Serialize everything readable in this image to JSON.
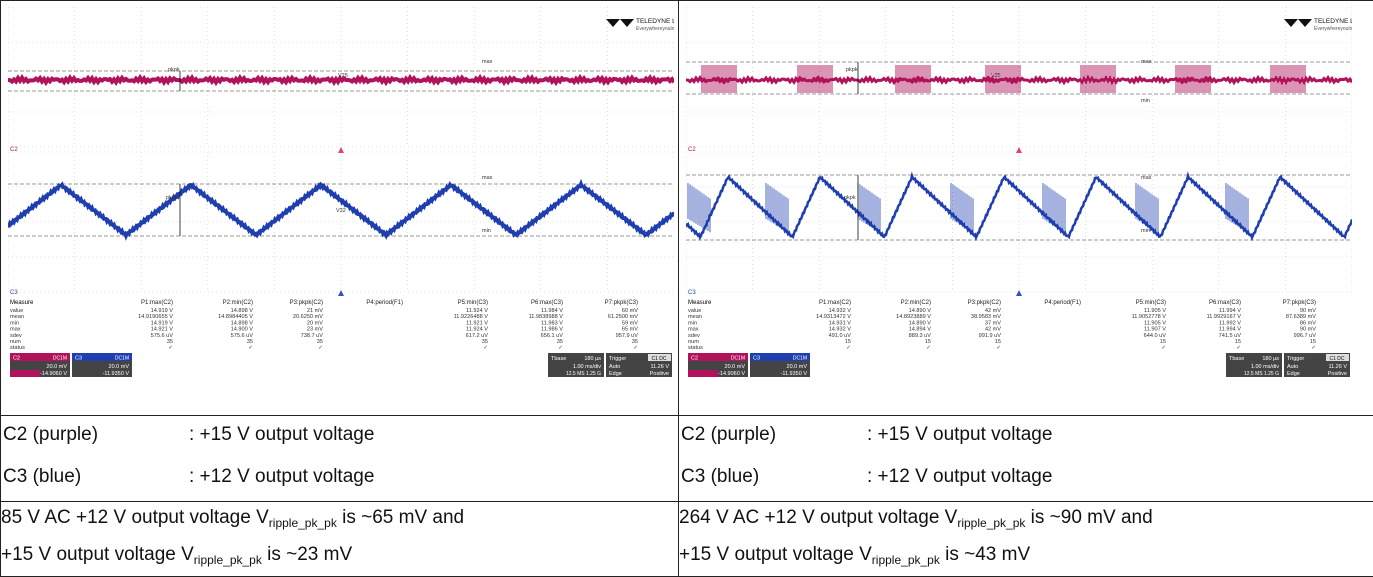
{
  "panels": [
    {
      "logo": {
        "brand": "TELEDYNE LECROY",
        "tagline": "Everywhereyoulook"
      },
      "markers": {
        "c2_top": "pkpk",
        "c2_mid": "V25",
        "c2_max": "max",
        "c3_pkpk": "pkpk",
        "c3_mid": "V32",
        "c3_max": "max",
        "c3_min": "min",
        "ch2_label": "C2",
        "ch3_label": "C3"
      },
      "measure": {
        "headers": [
          "Measure",
          "P1:max(C2)",
          "P2:min(C2)",
          "P3:pkpk(C2)",
          "P4:period(F1)",
          "P5:min(C3)",
          "P6:max(C3)",
          "P7:pkpk(C3)",
          "P8:- - -"
        ],
        "rows": [
          [
            "value",
            "14.919 V",
            "14.898 V",
            "21 mV",
            "",
            "11.924 V",
            "11.984 V",
            "60 mV",
            ""
          ],
          [
            "mean",
            "14.9190655 V",
            "14.8984405 V",
            "20.6250 mV",
            "",
            "11.9226488 V",
            "11.9838988 V",
            "61.2500 mV",
            ""
          ],
          [
            "min",
            "14.919 V",
            "14.898 V",
            "20 mV",
            "",
            "11.921 V",
            "11.983 V",
            "59 mV",
            ""
          ],
          [
            "max",
            "14.921 V",
            "14.900 V",
            "23 mV",
            "",
            "11.924 V",
            "11.986 V",
            "65 mV",
            ""
          ],
          [
            "sdev",
            "575.6 uV",
            "575.6 uV",
            "738.7 uV",
            "",
            "617.2 uV",
            "656.1 uV",
            "957.9 uV",
            ""
          ],
          [
            "num",
            "35",
            "35",
            "35",
            "",
            "35",
            "35",
            "35",
            ""
          ],
          [
            "status",
            "✓",
            "✓",
            "✓",
            "",
            "✓",
            "✓",
            "✓",
            ""
          ]
        ]
      },
      "chboxes": [
        {
          "name": "C2",
          "coupling": "DC1M",
          "vdiv": "20.0 mV",
          "offset": "-14.9060 V"
        },
        {
          "name": "C3",
          "coupling": "DC1M",
          "vdiv": "20.0 mV",
          "offset": "-11.9350 V"
        }
      ],
      "timebase": {
        "label": "Tbase",
        "value": "180 µs",
        "rate": "1.00 ms/div",
        "samples": "12.5 MS  1.25 G"
      },
      "trigger": {
        "label": "Trigger",
        "ch": "C1 DC",
        "mode": "Auto",
        "level": "11.26 V",
        "type": "Edge",
        "slope": "Positive"
      }
    },
    {
      "logo": {
        "brand": "TELEDYNE LECROY",
        "tagline": "Everywhereyoulook"
      },
      "markers": {
        "c2_top": "pkpk",
        "c2_mid": "V25",
        "c2_max": "max",
        "c2_min": "min",
        "c3_pkpk": "pkpk",
        "c3_max": "max",
        "c3_min": "min",
        "ch2_label": "C2",
        "ch3_label": "C3"
      },
      "measure": {
        "headers": [
          "Measure",
          "P1:max(C2)",
          "P2:min(C2)",
          "P3:pkpk(C2)",
          "P4:period(F1)",
          "P5:min(C3)",
          "P6:max(C3)",
          "P7:pkpk(C3)",
          "P8:- - -"
        ],
        "rows": [
          [
            "value",
            "14.932 V",
            "14.890 V",
            "42 mV",
            "",
            "11.905 V",
            "11.994 V",
            "90 mV",
            ""
          ],
          [
            "mean",
            "14.9313472 V",
            "14.8923889 V",
            "38.9583 mV",
            "",
            "11.9052778 V",
            "11.9929167 V",
            "87.6389 mV",
            ""
          ],
          [
            "min",
            "14.931 V",
            "14.890 V",
            "37 mV",
            "",
            "11.905 V",
            "11.992 V",
            "86 mV",
            ""
          ],
          [
            "max",
            "14.932 V",
            "14.894 V",
            "42 mV",
            "",
            "11.907 V",
            "11.994 V",
            "90 mV",
            ""
          ],
          [
            "sdev",
            "491.0 uV",
            "889.3 uV",
            "991.9 uV",
            "",
            "644.0 uV",
            "741.5 uV",
            "996.7 uV",
            ""
          ],
          [
            "num",
            "15",
            "15",
            "15",
            "",
            "15",
            "15",
            "15",
            ""
          ],
          [
            "status",
            "✓",
            "✓",
            "✓",
            "",
            "✓",
            "✓",
            "✓",
            ""
          ]
        ]
      },
      "chboxes": [
        {
          "name": "C2",
          "coupling": "DC1M",
          "vdiv": "20.0 mV",
          "offset": "-14.9060 V"
        },
        {
          "name": "C3",
          "coupling": "DC1M",
          "vdiv": "20.0 mV",
          "offset": "-11.9350 V"
        }
      ],
      "timebase": {
        "label": "Tbase",
        "value": "180 µs",
        "rate": "1.00 ms/div",
        "samples": "12.5 MS  1.25 G"
      },
      "trigger": {
        "label": "Trigger",
        "ch": "C1 DC",
        "mode": "Auto",
        "level": "11.26 V",
        "type": "Edge",
        "slope": "Positive"
      }
    }
  ],
  "legend": {
    "c2_channel": "C2 (purple)",
    "c2_desc": ": +15 V output voltage",
    "c3_channel": "C3 (blue)",
    "c3_desc": ": +12 V output voltage"
  },
  "notes": [
    {
      "line1_pre": "85 V AC +12 V output voltage V",
      "sub": "ripple_pk_pk",
      "line1_post": " is ~65 mV and",
      "line2_pre": "+15 V output voltage V",
      "line2_post": " is ~23 mV"
    },
    {
      "line1_pre": "264 V AC +12 V output voltage V",
      "sub": "ripple_pk_pk",
      "line1_post": " is ~90 mV and",
      "line2_pre": "+15 V output voltage V",
      "line2_post": " is ~43 mV"
    }
  ],
  "colors": {
    "c2": "#b0125b",
    "c3": "#1f3fb0",
    "grid": "#c8c8c8",
    "chbox_c2": "#b0125b",
    "chbox_c3": "#1f3fb0"
  }
}
